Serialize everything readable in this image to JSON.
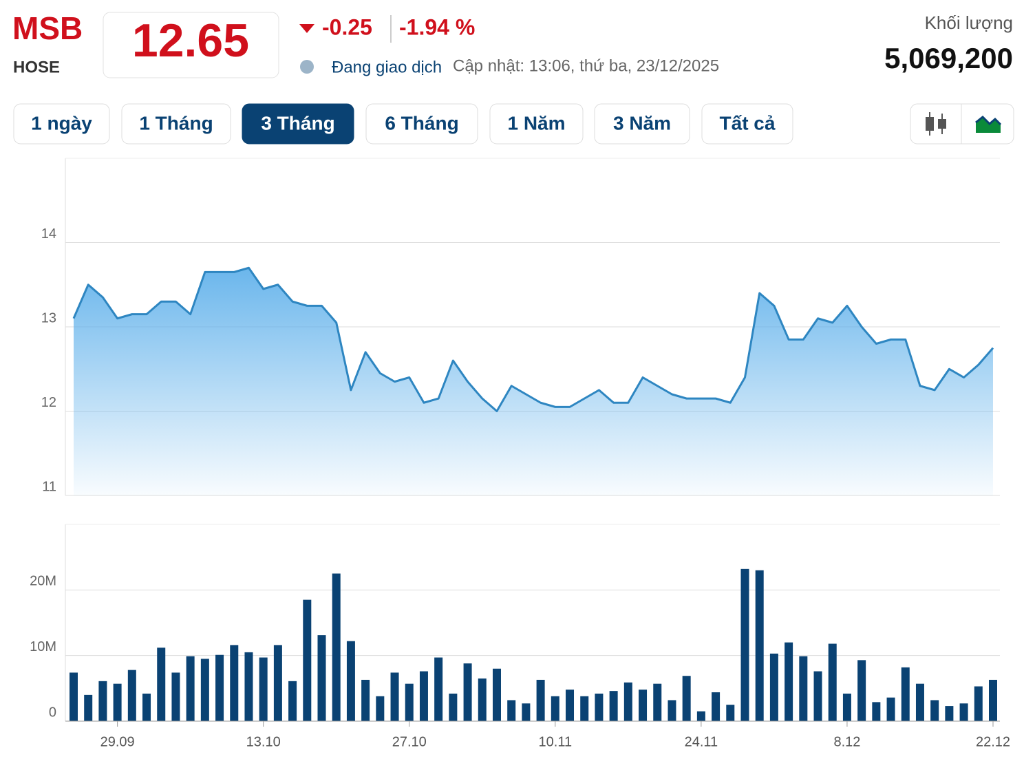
{
  "header": {
    "symbol": "MSB",
    "exchange": "HOSE",
    "price": "12.65",
    "change": "-0.25",
    "change_pct": "-1.94 %",
    "status": "Đang giao dịch",
    "updated": "Cập nhật: 13:06, thứ ba, 23/12/2025",
    "volume_label": "Khối lượng",
    "volume": "5,069,200"
  },
  "ranges": [
    "1 ngày",
    "1 Tháng",
    "3 Tháng",
    "6 Tháng",
    "1 Năm",
    "3 Năm",
    "Tất cả"
  ],
  "chart_data": [
    {
      "type": "area",
      "color": "#2e86c1",
      "ylim": [
        11,
        15
      ],
      "yticks": [
        11,
        12,
        13,
        14
      ],
      "grid": true,
      "values": [
        13.1,
        13.5,
        13.35,
        13.1,
        13.15,
        13.15,
        13.3,
        13.3,
        13.15,
        13.65,
        13.65,
        13.65,
        13.7,
        13.45,
        13.5,
        13.3,
        13.25,
        13.25,
        13.05,
        12.25,
        12.7,
        12.45,
        12.35,
        12.4,
        12.1,
        12.15,
        12.6,
        12.35,
        12.15,
        12.0,
        12.3,
        12.2,
        12.1,
        12.05,
        12.05,
        12.15,
        12.25,
        12.1,
        12.1,
        12.4,
        12.3,
        12.2,
        12.15,
        12.15,
        12.15,
        12.1,
        12.4,
        13.4,
        13.25,
        12.85,
        12.85,
        13.1,
        13.05,
        13.25,
        13.0,
        12.8,
        12.85,
        12.85,
        12.3,
        12.25,
        12.5,
        12.4,
        12.55,
        12.75
      ]
    },
    {
      "type": "bar",
      "color": "#0a4273",
      "ylim": [
        0,
        30000000
      ],
      "yticks": [
        0,
        {
          "value": 10000000,
          "label": "10M"
        },
        {
          "value": 20000000,
          "label": "20M"
        }
      ],
      "grid": true,
      "categories": [
        null,
        null,
        null,
        "29.09",
        null,
        null,
        null,
        null,
        null,
        null,
        null,
        null,
        null,
        "13.10",
        null,
        null,
        null,
        null,
        null,
        null,
        null,
        null,
        null,
        "27.10",
        null,
        null,
        null,
        null,
        null,
        null,
        null,
        null,
        null,
        "10.11",
        null,
        null,
        null,
        null,
        null,
        null,
        null,
        null,
        null,
        "24.11",
        null,
        null,
        null,
        null,
        null,
        null,
        null,
        null,
        null,
        "8.12",
        null,
        null,
        null,
        null,
        null,
        null,
        null,
        null,
        null,
        "22.12"
      ],
      "values": [
        7400000,
        4000000,
        6100000,
        5700000,
        7800000,
        4200000,
        11200000,
        7400000,
        9900000,
        9500000,
        10100000,
        11600000,
        10500000,
        9700000,
        11600000,
        6100000,
        18500000,
        13100000,
        22500000,
        12200000,
        6300000,
        3800000,
        7400000,
        5700000,
        7600000,
        9700000,
        4200000,
        8800000,
        6500000,
        8000000,
        3200000,
        2700000,
        6300000,
        3800000,
        4800000,
        3800000,
        4200000,
        4600000,
        5900000,
        4800000,
        5700000,
        3200000,
        6900000,
        1500000,
        4400000,
        2500000,
        23200000,
        23000000,
        10300000,
        12000000,
        9900000,
        7600000,
        11800000,
        4200000,
        9300000,
        2900000,
        3600000,
        8200000,
        5700000,
        3200000,
        2300000,
        2700000,
        5300000,
        6300000
      ]
    }
  ]
}
